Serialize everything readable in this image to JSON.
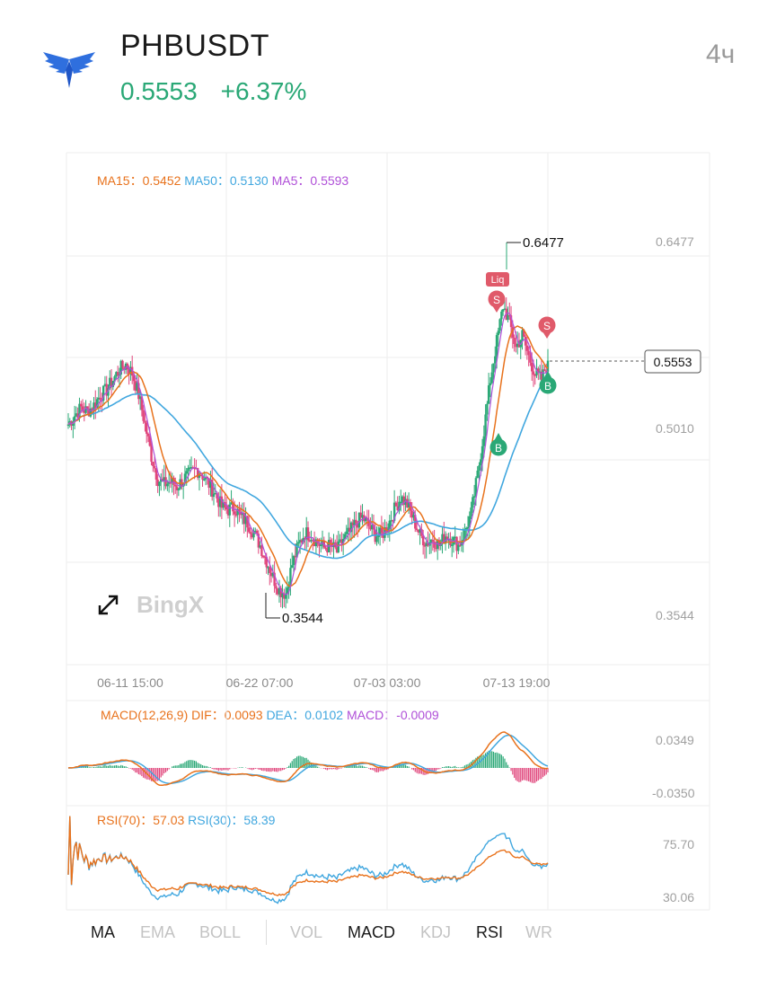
{
  "header": {
    "symbol": "PHBUSDT",
    "price": "0.5553",
    "change": "+6.37%",
    "timeframe": "4ч",
    "logo_icon": "eagle-logo-icon"
  },
  "colors": {
    "up": "#2aa876",
    "down": "#e0457b",
    "ma15": "#e8721c",
    "ma50": "#41a7df",
    "ma5": "#b050d8",
    "grid": "#eeeeee",
    "axis_text": "#a0a0a0"
  },
  "main_legend": {
    "ma15_label": "MA15：",
    "ma15_value": "0.5452",
    "ma50_label": "MA50：",
    "ma50_value": "0.5130",
    "ma5_label": "MA5：",
    "ma5_value": "0.5593"
  },
  "watermark": "BingX",
  "expand_icon": "expand-arrows-icon",
  "macd_legend": {
    "title": "MACD(12,26,9)",
    "dif_label": "DIF：",
    "dif_value": "0.0093",
    "dea_label": "DEA：",
    "dea_value": "0.0102",
    "macd_label": "MACD：",
    "macd_value": "-0.0009"
  },
  "rsi_legend": {
    "rsi70_label": "RSI(70)：",
    "rsi70_value": "57.03",
    "rsi30_label": "RSI(30)：",
    "rsi30_value": "58.39"
  },
  "tabs": {
    "main": [
      {
        "label": "MA",
        "active": true
      },
      {
        "label": "EMA",
        "active": false
      },
      {
        "label": "BOLL",
        "active": false
      }
    ],
    "sub": [
      {
        "label": "VOL",
        "active": false
      },
      {
        "label": "MACD",
        "active": true
      },
      {
        "label": "KDJ",
        "active": false
      },
      {
        "label": "RSI",
        "active": true
      },
      {
        "label": "WR",
        "active": false
      }
    ]
  },
  "chart_data": [
    {
      "type": "candlestick",
      "title": "PHBUSDT",
      "y_ticks": [
        "0.6477",
        "0.5010",
        "0.3544"
      ],
      "ylim": [
        0.3544,
        0.6477
      ],
      "x_ticks": [
        "06-11 15:00",
        "06-22 07:00",
        "07-03 03:00",
        "07-13 19:00"
      ],
      "high_label": "0.6477",
      "low_label": "0.3544",
      "last_price_label": "0.5553",
      "markers": [
        {
          "text": "Liq",
          "kind": "liquidation",
          "at": 0.625
        },
        {
          "text": "S",
          "kind": "sell",
          "at": 0.61
        },
        {
          "text": "S",
          "kind": "sell",
          "at": 0.587
        },
        {
          "text": "B",
          "kind": "buy",
          "at": 0.488
        },
        {
          "text": "B",
          "kind": "buy",
          "at": 0.535
        }
      ],
      "close_series": [
        0.505,
        0.512,
        0.518,
        0.515,
        0.52,
        0.528,
        0.532,
        0.54,
        0.548,
        0.552,
        0.545,
        0.528,
        0.505,
        0.48,
        0.462,
        0.458,
        0.46,
        0.456,
        0.462,
        0.466,
        0.47,
        0.465,
        0.458,
        0.45,
        0.44,
        0.438,
        0.44,
        0.432,
        0.428,
        0.42,
        0.41,
        0.398,
        0.385,
        0.375,
        0.372,
        0.395,
        0.41,
        0.42,
        0.418,
        0.412,
        0.408,
        0.41,
        0.405,
        0.415,
        0.42,
        0.428,
        0.432,
        0.425,
        0.418,
        0.418,
        0.426,
        0.438,
        0.448,
        0.442,
        0.43,
        0.418,
        0.412,
        0.415,
        0.41,
        0.418,
        0.415,
        0.41,
        0.42,
        0.435,
        0.465,
        0.5,
        0.54,
        0.57,
        0.598,
        0.585,
        0.565,
        0.575,
        0.558,
        0.545,
        0.54,
        0.555
      ],
      "series": [
        {
          "name": "MA15",
          "value": "0.5452"
        },
        {
          "name": "MA50",
          "value": "0.5130"
        },
        {
          "name": "MA5",
          "value": "0.5593"
        }
      ]
    },
    {
      "type": "line",
      "title": "MACD(12,26,9)",
      "y_ticks": [
        "0.0349",
        "-0.0350"
      ],
      "ylim": [
        -0.035,
        0.0349
      ],
      "series": [
        {
          "name": "DIF",
          "value": "0.0093"
        },
        {
          "name": "DEA",
          "value": "0.0102"
        },
        {
          "name": "MACD",
          "value": "-0.0009"
        }
      ]
    },
    {
      "type": "line",
      "title": "RSI",
      "y_ticks": [
        "75.70",
        "30.06"
      ],
      "ylim": [
        30.06,
        75.7
      ],
      "series": [
        {
          "name": "RSI(70)",
          "value": "57.03"
        },
        {
          "name": "RSI(30)",
          "value": "58.39"
        }
      ]
    }
  ]
}
